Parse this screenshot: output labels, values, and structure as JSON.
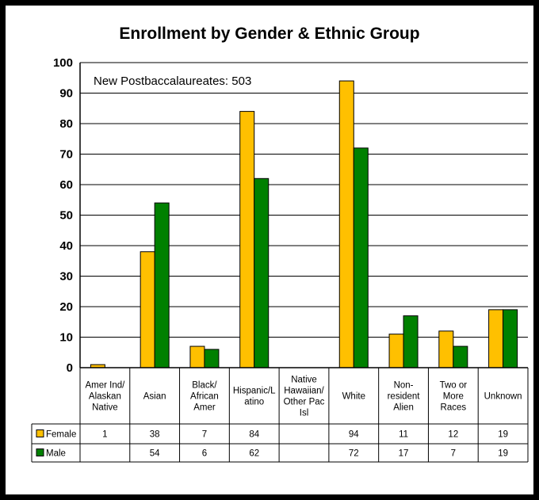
{
  "chart_data": {
    "type": "bar",
    "title": "Enrollment by Gender & Ethnic Group",
    "annotation": "New Postbaccalaureates: 503",
    "categories": [
      [
        "Amer Ind/",
        "Alaskan",
        "Native"
      ],
      [
        "Asian"
      ],
      [
        "Black/",
        "African",
        "Amer"
      ],
      [
        "Hispanic/L",
        "atino"
      ],
      [
        "Native",
        "Hawaiian/",
        "Other Pac",
        "Isl"
      ],
      [
        "White"
      ],
      [
        "Non-",
        "resident",
        "Alien"
      ],
      [
        "Two or",
        "More",
        "Races"
      ],
      [
        "Unknown"
      ]
    ],
    "series": [
      {
        "name": "Female",
        "color": "#FFC000",
        "values": [
          1,
          38,
          7,
          84,
          null,
          94,
          11,
          12,
          19
        ]
      },
      {
        "name": "Male",
        "color": "#008000",
        "values": [
          null,
          54,
          6,
          62,
          null,
          72,
          17,
          7,
          19
        ]
      }
    ],
    "ylim": [
      0,
      100
    ],
    "yticks": [
      0,
      10,
      20,
      30,
      40,
      50,
      60,
      70,
      80,
      90,
      100
    ],
    "grid": true,
    "legend": "data-table"
  }
}
